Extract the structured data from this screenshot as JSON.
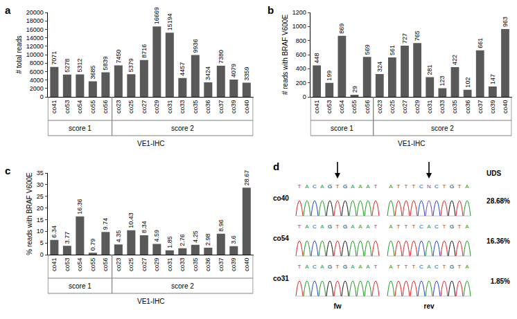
{
  "chart_data": [
    {
      "type": "bar",
      "title": "a",
      "y_label": "# total reads",
      "categories": [
        "co41",
        "co53",
        "co54",
        "co55",
        "co56",
        "co23",
        "co25",
        "co27",
        "co29",
        "co31",
        "co33",
        "co35",
        "co36",
        "co37",
        "co39",
        "co40"
      ],
      "values": [
        7071,
        5278,
        5312,
        3685,
        5839,
        7450,
        5379,
        8716,
        16669,
        15194,
        4457,
        9936,
        3424,
        7380,
        4079,
        3359
      ],
      "color": "#595959",
      "ylim": [
        0,
        20000
      ],
      "yticks": [
        0,
        2000,
        4000,
        6000,
        8000,
        10000,
        12000,
        14000,
        16000,
        18000,
        20000
      ],
      "grid": false,
      "data_labels": true,
      "groups": [
        {
          "label": "score 1",
          "categories": [
            "co41",
            "co53",
            "co54",
            "co55",
            "co56"
          ]
        },
        {
          "label": "score 2",
          "categories": [
            "co23",
            "co25",
            "co27",
            "co29",
            "co31",
            "co33",
            "co35",
            "co36",
            "co37",
            "co39",
            "co40"
          ]
        }
      ],
      "group_title": "VE1-IHC"
    },
    {
      "type": "bar",
      "title": "b",
      "y_label": "# reads with BRAF V600E",
      "categories": [
        "co41",
        "co53",
        "co54",
        "co55",
        "co56",
        "co23",
        "co25",
        "co27",
        "co29",
        "co31",
        "co33",
        "co35",
        "co36",
        "co37",
        "co39",
        "co40"
      ],
      "values": [
        448,
        199,
        869,
        29,
        569,
        324,
        561,
        727,
        765,
        281,
        123,
        422,
        102,
        661,
        147,
        963
      ],
      "color": "#595959",
      "ylim": [
        0,
        1200
      ],
      "yticks": [
        0,
        200,
        400,
        600,
        800,
        1000,
        1200
      ],
      "grid": false,
      "data_labels": true,
      "groups": [
        {
          "label": "score 1",
          "categories": [
            "co41",
            "co53",
            "co54",
            "co55",
            "co56"
          ]
        },
        {
          "label": "score 2",
          "categories": [
            "co23",
            "co25",
            "co27",
            "co29",
            "co31",
            "co33",
            "co35",
            "co36",
            "co37",
            "co39",
            "co40"
          ]
        }
      ],
      "group_title": "VE1-IHC"
    },
    {
      "type": "bar",
      "title": "c",
      "y_label": "% reads with BRAF V600E",
      "categories": [
        "co41",
        "co53",
        "co54",
        "co55",
        "co56",
        "co23",
        "co25",
        "co27",
        "co29",
        "co31",
        "co33",
        "co35",
        "co36",
        "co37",
        "co39",
        "co40"
      ],
      "values": [
        6.34,
        3.77,
        16.36,
        0.79,
        9.74,
        4.35,
        10.43,
        8.34,
        4.59,
        1.85,
        2.76,
        4.25,
        2.98,
        8.96,
        3.6,
        28.67
      ],
      "color": "#595959",
      "ylim": [
        0,
        35
      ],
      "yticks": [
        0,
        5,
        10,
        15,
        20,
        25,
        30,
        35
      ],
      "grid": false,
      "data_labels": true,
      "groups": [
        {
          "label": "score 1",
          "categories": [
            "co41",
            "co53",
            "co54",
            "co55",
            "co56"
          ]
        },
        {
          "label": "score 2",
          "categories": [
            "co23",
            "co25",
            "co27",
            "co29",
            "co31",
            "co33",
            "co35",
            "co36",
            "co37",
            "co39",
            "co40"
          ]
        }
      ],
      "group_title": "VE1-IHC"
    }
  ],
  "panel_d": {
    "title": "d",
    "uds_header": "UDS",
    "strand_labels": [
      "fw",
      "rev"
    ],
    "samples": [
      {
        "label": "co40",
        "uds": "28.68%",
        "fw": "TACAGTGAAAT",
        "rev": "ATTTCNCTGTA"
      },
      {
        "label": "co54",
        "uds": "16.36%",
        "fw": "TACAGTGAAAT",
        "rev": "ATTTCACTGTA"
      },
      {
        "label": "co31",
        "uds": "1.85%",
        "fw": "TACAGTGAAAT",
        "rev": "ATTTCACTGTA"
      }
    ]
  }
}
